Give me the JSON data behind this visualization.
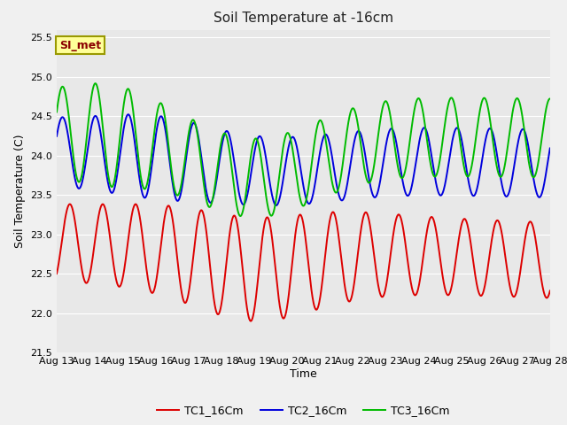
{
  "title": "Soil Temperature at -16cm",
  "xlabel": "Time",
  "ylabel": "Soil Temperature (C)",
  "ylim": [
    21.5,
    25.6
  ],
  "annotation_text": "SI_met",
  "bg_color": "#e8e8e8",
  "fig_bg_color": "#f0f0f0",
  "grid_color": "#ffffff",
  "tc1_color": "#dd0000",
  "tc2_color": "#0000dd",
  "tc3_color": "#00bb00",
  "legend_labels": [
    "TC1_16Cm",
    "TC2_16Cm",
    "TC3_16Cm"
  ],
  "linewidth": 1.4,
  "x_tick_labels": [
    "Aug 13",
    "Aug 14",
    "Aug 15",
    "Aug 16",
    "Aug 17",
    "Aug 18",
    "Aug 19",
    "Aug 20",
    "Aug 21",
    "Aug 22",
    "Aug 23",
    "Aug 24",
    "Aug 25",
    "Aug 26",
    "Aug 27",
    "Aug 28"
  ],
  "yticks": [
    21.5,
    22.0,
    22.5,
    23.0,
    23.5,
    24.0,
    24.5,
    25.0,
    25.5
  ]
}
